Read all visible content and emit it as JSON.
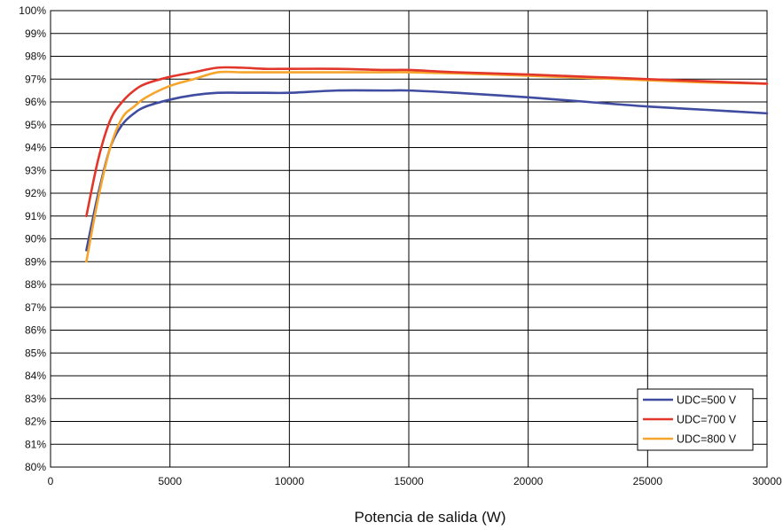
{
  "chart_data": {
    "type": "line",
    "title": "",
    "xlabel": "Potencia de salida (W)",
    "ylabel": "",
    "xlim": [
      0,
      30000
    ],
    "ylim": [
      80,
      100
    ],
    "x_ticks": [
      0,
      5000,
      10000,
      15000,
      20000,
      25000,
      30000
    ],
    "x_tick_labels": [
      "0",
      "5000",
      "10000",
      "15000",
      "20000",
      "25000",
      "30000"
    ],
    "y_ticks": [
      80,
      81,
      82,
      83,
      84,
      85,
      86,
      87,
      88,
      89,
      90,
      91,
      92,
      93,
      94,
      95,
      96,
      97,
      98,
      99,
      100
    ],
    "y_tick_labels": [
      "80%",
      "81%",
      "82%",
      "83%",
      "84%",
      "85%",
      "86%",
      "87%",
      "88%",
      "89%",
      "90%",
      "91%",
      "92%",
      "93%",
      "94%",
      "95%",
      "96%",
      "97%",
      "98%",
      "99%",
      "100%"
    ],
    "grid": true,
    "legend_position": "bottom-right",
    "series": [
      {
        "name": "UDC=500 V",
        "color": "#3f4c9f",
        "x": [
          1500,
          2000,
          2500,
          3000,
          3500,
          4000,
          5000,
          6000,
          7000,
          8000,
          9000,
          10000,
          12000,
          14000,
          15000,
          17000,
          20000,
          22500,
          25000,
          27500,
          30000
        ],
        "y": [
          89.5,
          92.0,
          94.0,
          95.0,
          95.5,
          95.8,
          96.1,
          96.3,
          96.4,
          96.4,
          96.4,
          96.4,
          96.5,
          96.5,
          96.5,
          96.4,
          96.2,
          96.0,
          95.8,
          95.65,
          95.5
        ]
      },
      {
        "name": "UDC=700 V",
        "color": "#e2362a",
        "x": [
          1500,
          2000,
          2500,
          3000,
          3500,
          4000,
          5000,
          6000,
          7000,
          8000,
          9000,
          10000,
          12000,
          14000,
          15000,
          17000,
          20000,
          22500,
          25000,
          27500,
          30000
        ],
        "y": [
          91.0,
          93.5,
          95.2,
          96.0,
          96.5,
          96.8,
          97.1,
          97.3,
          97.5,
          97.5,
          97.45,
          97.45,
          97.45,
          97.4,
          97.4,
          97.3,
          97.2,
          97.1,
          97.0,
          96.9,
          96.8
        ]
      },
      {
        "name": "UDC=800 V",
        "color": "#f5a52b",
        "x": [
          1500,
          2000,
          2500,
          3000,
          3500,
          4000,
          5000,
          6000,
          7000,
          8000,
          9000,
          10000,
          12000,
          14000,
          15000,
          17000,
          20000,
          22500,
          25000,
          27500,
          30000
        ],
        "y": [
          89.0,
          91.8,
          94.0,
          95.3,
          95.8,
          96.2,
          96.7,
          97.0,
          97.3,
          97.3,
          97.3,
          97.3,
          97.3,
          97.3,
          97.3,
          97.25,
          97.15,
          97.05,
          96.95,
          96.85,
          96.8
        ]
      }
    ]
  }
}
